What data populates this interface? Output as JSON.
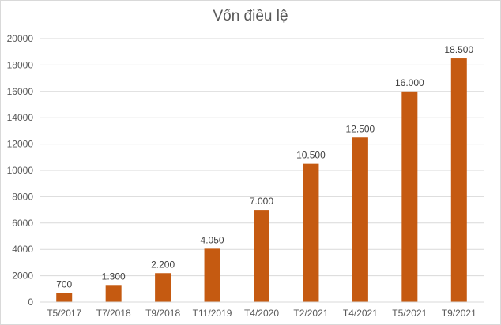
{
  "chart_data": {
    "type": "bar",
    "title": "Vốn điều lệ",
    "xlabel": "",
    "ylabel": "",
    "categories": [
      "T5/2017",
      "T7/2018",
      "T9/2018",
      "T11/2019",
      "T4/2020",
      "T2/2021",
      "T4/2021",
      "T5/2021",
      "T9/2021"
    ],
    "values": [
      700,
      1300,
      2200,
      4050,
      7000,
      10500,
      12500,
      16000,
      18500
    ],
    "data_labels": [
      "700",
      "1.300",
      "2.200",
      "4.050",
      "7.000",
      "10.500",
      "12.500",
      "16.000",
      "18.500"
    ],
    "ylim": [
      0,
      20000
    ],
    "yticks": [
      0,
      2000,
      4000,
      6000,
      8000,
      10000,
      12000,
      14000,
      16000,
      18000,
      20000
    ],
    "grid": true,
    "legend": "none",
    "bar_color": "#c55a11",
    "grid_color": "#d9d9d9",
    "text_color": "#595959"
  }
}
